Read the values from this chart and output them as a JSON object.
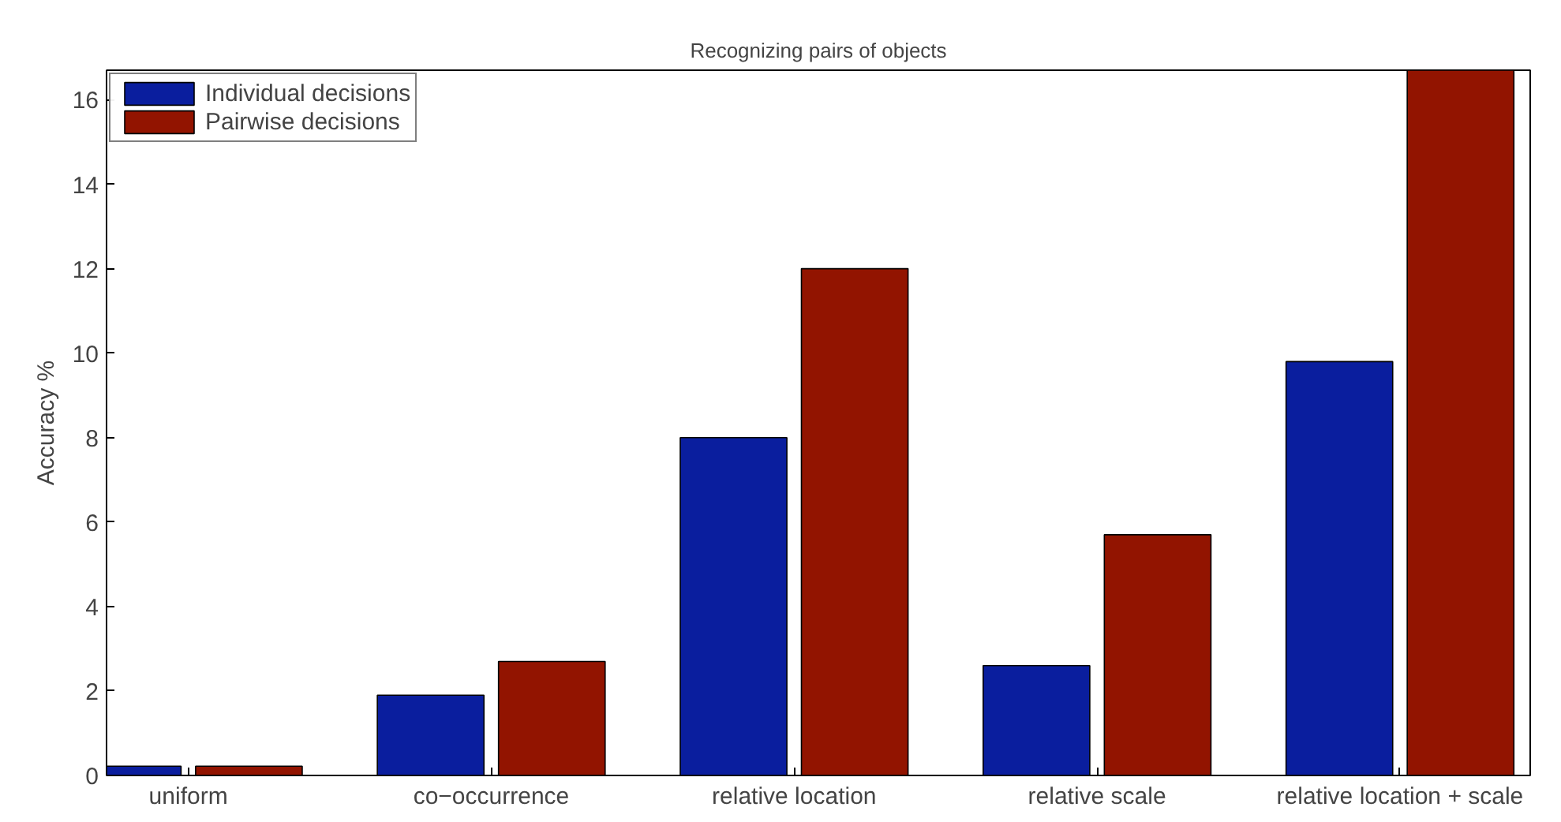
{
  "chart_data": {
    "type": "bar",
    "title": "Recognizing pairs of objects",
    "ylabel": "Accuracy %",
    "categories": [
      "uniform",
      "co−occurrence",
      "relative location",
      "relative scale",
      "relative location + scale"
    ],
    "series": [
      {
        "name": "Individual decisions",
        "color": "#0a1e9e",
        "values": [
          0.22,
          1.9,
          8.0,
          2.6,
          9.8
        ]
      },
      {
        "name": "Pairwise decisions",
        "color": "#921400",
        "values": [
          0.22,
          2.7,
          12.0,
          5.7,
          16.7
        ]
      }
    ],
    "ylim": [
      0,
      16.7
    ],
    "yticks": [
      0,
      2,
      4,
      6,
      8,
      10,
      12,
      14,
      16
    ],
    "grid": false,
    "legend": "top left"
  }
}
